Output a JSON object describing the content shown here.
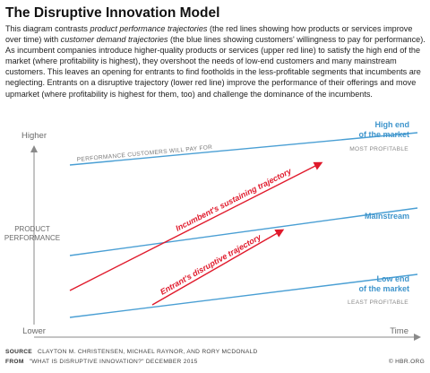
{
  "title": "The Disruptive Innovation Model",
  "intro": {
    "t1": "This diagram contrasts ",
    "em1": "product performance trajectories",
    "t2": " (the red lines showing how products or services improve over time) with ",
    "em2": "customer demand trajectories",
    "t3": " (the blue lines showing customers' willingness to pay for performance). As incumbent companies introduce higher-quality products or services (upper red line) to satisfy the high end of the market (where profitability is highest), they overshoot the needs of low-end customers and many mainstream customers. This leaves an opening for entrants to find footholds in the less-profitable segments that incumbents are neglecting. Entrants on a disruptive trajectory (lower red line) improve the performance of their offerings and move upmarket (where profitability is highest for them, too) and challenge the dominance of the incumbents."
  },
  "axes": {
    "y_top": "Higher",
    "y_bottom": "Lower",
    "y_title_1": "PRODUCT",
    "y_title_2": "PERFORMANCE",
    "x_end": "Time"
  },
  "demand_lines": {
    "top_label": "PERFORMANCE CUSTOMERS WILL PAY FOR",
    "high_end_1": "High end",
    "high_end_2": "of the market",
    "high_end_note": "MOST PROFITABLE",
    "mainstream": "Mainstream",
    "low_end_1": "Low end",
    "low_end_2": "of the market",
    "low_end_note": "LEAST PROFITABLE"
  },
  "trajectories": {
    "sustaining": "Incumbent's sustaining trajectory",
    "disruptive": "Entrant's disruptive trajectory"
  },
  "footer": {
    "source_label": "SOURCE",
    "source_text": "CLAYTON M. CHRISTENSEN, MICHAEL RAYNOR, AND RORY MCDONALD",
    "from_label": "FROM",
    "from_text": "\"WHAT IS DISRUPTIVE INNOVATION?\" DECEMBER 2015",
    "credit": "© HBR.ORG"
  },
  "colors": {
    "red": "#e0192b",
    "blue": "#4a9fd4",
    "gray": "#8a8a8a"
  }
}
